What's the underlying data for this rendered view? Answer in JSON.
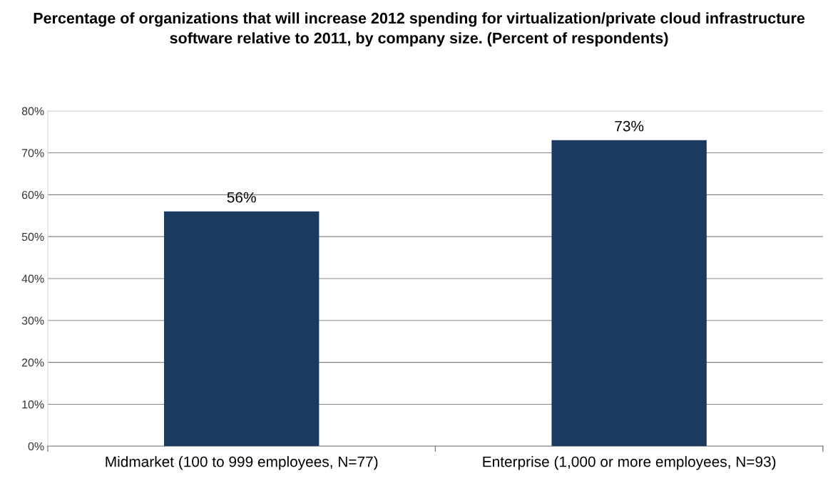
{
  "chart_data": {
    "type": "bar",
    "title": "Percentage of organizations that will increase 2012 spending for virtualization/private cloud infrastructure software relative to 2011, by company size. (Percent of respondents)",
    "categories": [
      "Midmarket (100 to 999 employees, N=77)",
      "Enterprise (1,000 or more employees, N=93)"
    ],
    "values": [
      56,
      73
    ],
    "value_labels": [
      "56%",
      "73%"
    ],
    "color": "#1b3a5f",
    "ylim": [
      0,
      80
    ],
    "yticks": [
      {
        "value": 0,
        "label": "0%"
      },
      {
        "value": 10,
        "label": "10%"
      },
      {
        "value": 20,
        "label": "20%"
      },
      {
        "value": 30,
        "label": "30%"
      },
      {
        "value": 40,
        "label": "40%"
      },
      {
        "value": 50,
        "label": "50%"
      },
      {
        "value": 60,
        "label": "60%"
      },
      {
        "value": 70,
        "label": "70%"
      },
      {
        "value": 80,
        "label": "80%"
      }
    ],
    "grid": "y"
  }
}
